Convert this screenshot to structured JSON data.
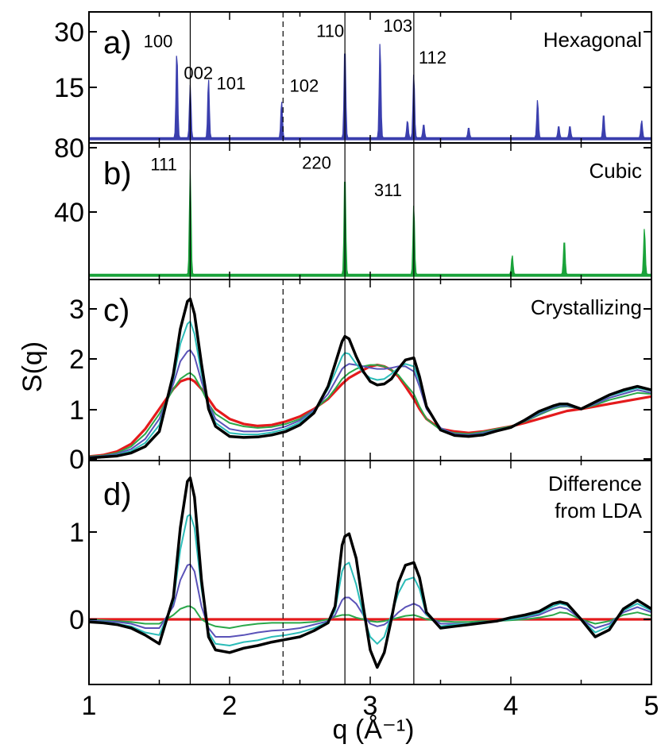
{
  "chart_data": {
    "type": "line",
    "xlabel": "q (Å⁻¹)",
    "ylabel": "S(q)",
    "xlim": [
      1,
      5
    ],
    "xticks": [
      "1",
      "2",
      "3",
      "4",
      "5"
    ],
    "reference_lines": {
      "solid_q": [
        1.72,
        2.82,
        3.31
      ],
      "dashed_q": [
        2.38
      ]
    },
    "panels": [
      {
        "letter": "a)",
        "title": "Hexagonal",
        "type": "line",
        "ylim": [
          0,
          35
        ],
        "yticks": [
          "30",
          "15"
        ],
        "series": [
          {
            "color": "#3b3fae",
            "peaks": [
              {
                "q": 1.625,
                "h": 25,
                "label": "100"
              },
              {
                "q": 1.72,
                "h": 15,
                "label": "002"
              },
              {
                "q": 1.85,
                "h": 17,
                "label": "101"
              },
              {
                "q": 2.37,
                "h": 10.5,
                "label": "102"
              },
              {
                "q": 2.82,
                "h": 27,
                "label": "110"
              },
              {
                "q": 3.07,
                "h": 27.5,
                "label": "103"
              },
              {
                "q": 3.265,
                "h": 5,
                "label": ""
              },
              {
                "q": 3.31,
                "h": 18.5,
                "label": "112"
              },
              {
                "q": 3.38,
                "h": 4,
                "label": ""
              },
              {
                "q": 3.7,
                "h": 3,
                "label": ""
              },
              {
                "q": 4.19,
                "h": 11,
                "label": ""
              },
              {
                "q": 4.34,
                "h": 3.5,
                "label": ""
              },
              {
                "q": 4.42,
                "h": 3.5,
                "label": ""
              },
              {
                "q": 4.66,
                "h": 7,
                "label": ""
              },
              {
                "q": 4.93,
                "h": 5,
                "label": ""
              }
            ]
          }
        ]
      },
      {
        "letter": "b)",
        "title": "Cubic",
        "type": "line",
        "ylim": [
          0,
          80
        ],
        "yticks": [
          "80",
          "40"
        ],
        "series": [
          {
            "color": "#1aa33a",
            "peaks": [
              {
                "q": 1.72,
                "h": 65,
                "label": "111"
              },
              {
                "q": 2.82,
                "h": 65,
                "label": "220"
              },
              {
                "q": 3.31,
                "h": 44,
                "label": "311"
              },
              {
                "q": 4.01,
                "h": 12,
                "label": ""
              },
              {
                "q": 4.38,
                "h": 22,
                "label": ""
              },
              {
                "q": 4.95,
                "h": 29,
                "label": ""
              }
            ]
          }
        ]
      },
      {
        "letter": "c)",
        "title": "Crystallizing",
        "type": "line",
        "ylim": [
          0,
          3.5
        ],
        "yticks": [
          "0",
          "1",
          "2",
          "3"
        ],
        "x": [
          1.0,
          1.1,
          1.2,
          1.3,
          1.4,
          1.5,
          1.6,
          1.65,
          1.7,
          1.72,
          1.75,
          1.8,
          1.85,
          1.9,
          2.0,
          2.1,
          2.2,
          2.3,
          2.4,
          2.5,
          2.6,
          2.7,
          2.75,
          2.8,
          2.82,
          2.85,
          2.9,
          2.95,
          3.0,
          3.05,
          3.1,
          3.15,
          3.2,
          3.25,
          3.31,
          3.35,
          3.4,
          3.5,
          3.6,
          3.7,
          3.8,
          3.9,
          4.0,
          4.1,
          4.2,
          4.3,
          4.35,
          4.4,
          4.5,
          4.6,
          4.7,
          4.8,
          4.9,
          5.0
        ],
        "series": [
          {
            "color": "#e41a1c",
            "values": [
              0.05,
              0.08,
              0.15,
              0.3,
              0.6,
              1.0,
              1.4,
              1.55,
              1.6,
              1.6,
              1.55,
              1.4,
              1.2,
              1.0,
              0.8,
              0.7,
              0.66,
              0.68,
              0.75,
              0.85,
              1.0,
              1.2,
              1.35,
              1.5,
              1.55,
              1.62,
              1.7,
              1.78,
              1.85,
              1.88,
              1.85,
              1.78,
              1.65,
              1.45,
              1.2,
              1.0,
              0.8,
              0.6,
              0.55,
              0.52,
              0.55,
              0.6,
              0.65,
              0.72,
              0.8,
              0.88,
              0.92,
              0.96,
              1.0,
              1.05,
              1.1,
              1.15,
              1.2,
              1.25
            ]
          },
          {
            "color": "#2aa84a",
            "values": [
              0.05,
              0.07,
              0.12,
              0.25,
              0.5,
              0.9,
              1.4,
              1.6,
              1.7,
              1.72,
              1.65,
              1.4,
              1.1,
              0.9,
              0.72,
              0.65,
              0.62,
              0.64,
              0.7,
              0.8,
              0.98,
              1.22,
              1.4,
              1.6,
              1.65,
              1.72,
              1.8,
              1.85,
              1.88,
              1.88,
              1.85,
              1.78,
              1.68,
              1.5,
              1.3,
              1.05,
              0.8,
              0.58,
              0.52,
              0.5,
              0.54,
              0.6,
              0.65,
              0.75,
              0.88,
              1.0,
              1.04,
              1.05,
              1.0,
              1.08,
              1.18,
              1.25,
              1.32,
              1.3
            ]
          },
          {
            "color": "#5a52b8",
            "values": [
              0.04,
              0.06,
              0.1,
              0.2,
              0.4,
              0.8,
              1.5,
              1.95,
              2.15,
              2.18,
              2.05,
              1.55,
              1.1,
              0.8,
              0.6,
              0.55,
              0.55,
              0.58,
              0.65,
              0.77,
              0.98,
              1.3,
              1.55,
              1.8,
              1.85,
              1.9,
              1.88,
              1.85,
              1.82,
              1.8,
              1.8,
              1.82,
              1.85,
              1.85,
              1.75,
              1.45,
              1.0,
              0.62,
              0.5,
              0.48,
              0.52,
              0.58,
              0.64,
              0.76,
              0.9,
              1.02,
              1.06,
              1.06,
              1.0,
              1.1,
              1.22,
              1.3,
              1.38,
              1.32
            ]
          },
          {
            "color": "#2bbcb8",
            "values": [
              0.03,
              0.05,
              0.08,
              0.16,
              0.32,
              0.68,
              1.6,
              2.3,
              2.7,
              2.75,
              2.5,
              1.7,
              1.05,
              0.72,
              0.52,
              0.49,
              0.49,
              0.53,
              0.6,
              0.73,
              0.95,
              1.4,
              1.72,
              2.05,
              2.12,
              2.1,
              1.9,
              1.72,
              1.62,
              1.58,
              1.6,
              1.7,
              1.82,
              1.9,
              1.85,
              1.55,
              1.05,
              0.6,
              0.48,
              0.46,
              0.5,
              0.57,
              0.64,
              0.77,
              0.92,
              1.04,
              1.08,
              1.08,
              1.0,
              1.12,
              1.26,
              1.34,
              1.42,
              1.36
            ]
          },
          {
            "color": "#000000",
            "values": [
              0.02,
              0.04,
              0.06,
              0.12,
              0.25,
              0.55,
              1.7,
              2.6,
              3.15,
              3.2,
              2.9,
              1.9,
              1.0,
              0.65,
              0.45,
              0.43,
              0.44,
              0.48,
              0.55,
              0.68,
              0.92,
              1.45,
              1.9,
              2.35,
              2.45,
              2.4,
              2.05,
              1.75,
              1.55,
              1.48,
              1.5,
              1.6,
              1.8,
              1.98,
              2.02,
              1.65,
              1.05,
              0.58,
              0.47,
              0.45,
              0.48,
              0.56,
              0.63,
              0.78,
              0.95,
              1.06,
              1.1,
              1.1,
              1.0,
              1.14,
              1.28,
              1.38,
              1.45,
              1.38
            ]
          }
        ]
      },
      {
        "letter": "d)",
        "title": "Difference from LDA",
        "type": "line",
        "ylim": [
          -0.55,
          1.7
        ],
        "yticks": [
          "0",
          "1"
        ],
        "x": [
          1.0,
          1.1,
          1.2,
          1.3,
          1.4,
          1.5,
          1.6,
          1.65,
          1.7,
          1.72,
          1.75,
          1.8,
          1.85,
          1.9,
          2.0,
          2.1,
          2.2,
          2.3,
          2.4,
          2.5,
          2.6,
          2.7,
          2.75,
          2.8,
          2.82,
          2.85,
          2.9,
          2.95,
          3.0,
          3.05,
          3.1,
          3.15,
          3.2,
          3.25,
          3.31,
          3.35,
          3.4,
          3.5,
          3.6,
          3.7,
          3.8,
          3.9,
          4.0,
          4.1,
          4.2,
          4.3,
          4.35,
          4.4,
          4.5,
          4.6,
          4.7,
          4.8,
          4.9,
          5.0
        ],
        "series": [
          {
            "color": "#e41a1c",
            "values": [
              0,
              0,
              0,
              0,
              0,
              0,
              0,
              0,
              0,
              0,
              0,
              0,
              0,
              0,
              0,
              0,
              0,
              0,
              0,
              0,
              0,
              0,
              0,
              0,
              0,
              0,
              0,
              0,
              0,
              0,
              0,
              0,
              0,
              0,
              0,
              0,
              0,
              0,
              0,
              0,
              0,
              0,
              0,
              0,
              0,
              0,
              0,
              0,
              0,
              0,
              0,
              0,
              0,
              0
            ]
          },
          {
            "color": "#2aa84a",
            "values": [
              0,
              -0.01,
              -0.02,
              -0.03,
              -0.05,
              -0.05,
              0.05,
              0.12,
              0.15,
              0.15,
              0.12,
              0.0,
              -0.05,
              -0.08,
              -0.1,
              -0.07,
              -0.05,
              -0.04,
              -0.04,
              -0.04,
              -0.03,
              0.0,
              0.03,
              0.05,
              0.05,
              0.05,
              0.02,
              0.0,
              -0.02,
              -0.03,
              -0.02,
              0.0,
              0.02,
              0.04,
              0.05,
              0.03,
              0.0,
              -0.02,
              -0.03,
              -0.03,
              -0.02,
              -0.02,
              -0.01,
              0.0,
              0.02,
              0.05,
              0.08,
              0.07,
              0.0,
              -0.05,
              -0.02,
              0.05,
              0.08,
              0.04
            ]
          },
          {
            "color": "#5a52b8",
            "values": [
              -0.01,
              -0.02,
              -0.03,
              -0.05,
              -0.1,
              -0.1,
              0.15,
              0.45,
              0.62,
              0.63,
              0.55,
              0.15,
              -0.1,
              -0.2,
              -0.2,
              -0.18,
              -0.15,
              -0.13,
              -0.12,
              -0.1,
              -0.06,
              -0.02,
              0.05,
              0.22,
              0.25,
              0.25,
              0.18,
              0.05,
              -0.05,
              -0.08,
              -0.06,
              0.0,
              0.08,
              0.14,
              0.18,
              0.15,
              0.05,
              -0.05,
              -0.05,
              -0.05,
              -0.03,
              -0.02,
              0.0,
              0.02,
              0.05,
              0.12,
              0.14,
              0.12,
              0.0,
              -0.1,
              -0.05,
              0.08,
              0.14,
              0.08
            ]
          },
          {
            "color": "#2bbcb8",
            "values": [
              -0.02,
              -0.03,
              -0.05,
              -0.08,
              -0.15,
              -0.18,
              0.2,
              0.8,
              1.18,
              1.2,
              1.05,
              0.35,
              -0.15,
              -0.28,
              -0.3,
              -0.26,
              -0.24,
              -0.2,
              -0.18,
              -0.15,
              -0.1,
              -0.03,
              0.1,
              0.55,
              0.62,
              0.65,
              0.4,
              0.05,
              -0.2,
              -0.28,
              -0.2,
              0.05,
              0.3,
              0.45,
              0.48,
              0.35,
              0.05,
              -0.08,
              -0.06,
              -0.05,
              -0.03,
              -0.02,
              0.0,
              0.03,
              0.07,
              0.15,
              0.18,
              0.16,
              0.0,
              -0.15,
              -0.08,
              0.1,
              0.18,
              0.1
            ]
          },
          {
            "color": "#000000",
            "values": [
              -0.03,
              -0.04,
              -0.06,
              -0.1,
              -0.18,
              -0.28,
              0.25,
              1.05,
              1.58,
              1.62,
              1.4,
              0.45,
              -0.2,
              -0.35,
              -0.38,
              -0.33,
              -0.3,
              -0.26,
              -0.23,
              -0.2,
              -0.13,
              -0.04,
              0.15,
              0.85,
              0.95,
              0.98,
              0.7,
              0.15,
              -0.35,
              -0.55,
              -0.38,
              0.0,
              0.42,
              0.62,
              0.65,
              0.48,
              0.08,
              -0.1,
              -0.08,
              -0.06,
              -0.04,
              -0.02,
              0.02,
              0.05,
              0.09,
              0.18,
              0.2,
              0.18,
              0.0,
              -0.2,
              -0.12,
              0.12,
              0.22,
              0.12
            ]
          }
        ]
      }
    ]
  }
}
